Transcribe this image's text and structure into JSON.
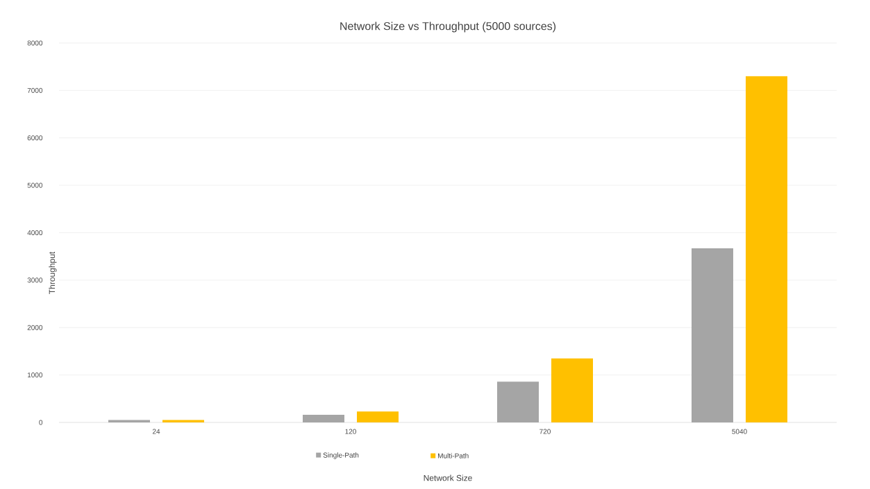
{
  "chart_data": {
    "type": "bar",
    "title": "Network Size vs Throughput (5000 sources)",
    "xlabel": "Network Size",
    "ylabel": "Throughput",
    "categories": [
      "24",
      "120",
      "720",
      "5040"
    ],
    "series": [
      {
        "name": "Single-Path",
        "color": "#a5a5a5",
        "values": [
          50,
          160,
          860,
          3670
        ]
      },
      {
        "name": "Multi-Path",
        "color": "#ffc000",
        "values": [
          50,
          230,
          1350,
          7300
        ]
      }
    ],
    "ylim": [
      0,
      8000
    ],
    "yticks": [
      0,
      1000,
      2000,
      3000,
      4000,
      5000,
      6000,
      7000,
      8000
    ],
    "grid": "y",
    "legend": "bottom"
  }
}
